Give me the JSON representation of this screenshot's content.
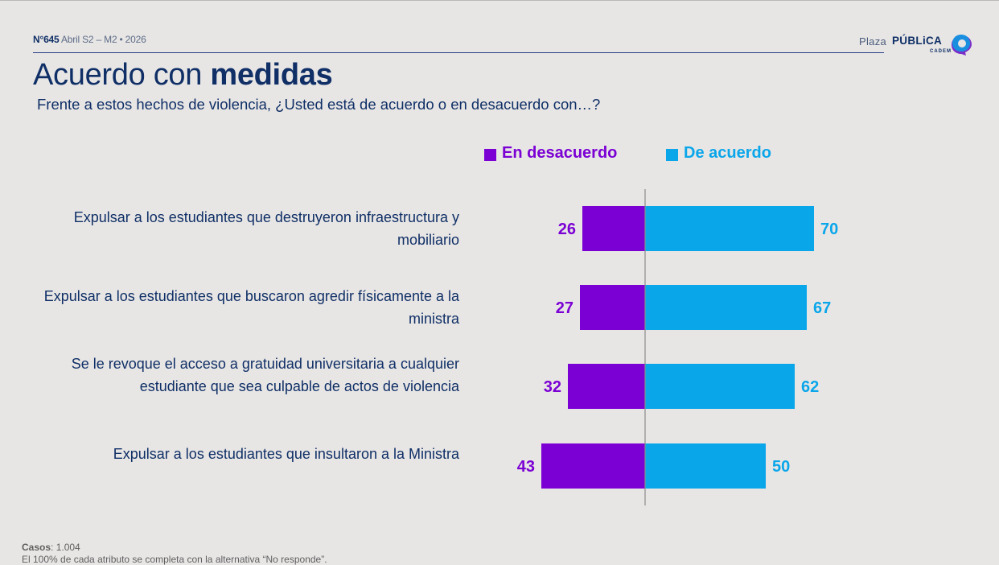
{
  "header": {
    "issue_number": "N°645",
    "issue_period": "Abril S2 – M2 • 2026",
    "logo": {
      "plaza": "Plaza",
      "publica": "PÚBLiCA",
      "cadem": "CADEM"
    },
    "title_regular": "Acuerdo con ",
    "title_bold": "medidas",
    "subtitle": "Frente a estos hechos de violencia, ¿Usted está de acuerdo o en desacuerdo con…?"
  },
  "colors": {
    "disagree": "#7b00d4",
    "agree": "#0aa6ea",
    "text": "#0f2f66",
    "axis": "#8a8a8a"
  },
  "chart_data": {
    "type": "bar",
    "orientation": "horizontal-diverging",
    "title": "Acuerdo con medidas",
    "subtitle": "Frente a estos hechos de violencia, ¿Usted está de acuerdo o en desacuerdo con…?",
    "categories": [
      "Expulsar a los estudiantes que destruyeron infraestructura y mobiliario",
      "Expulsar a los estudiantes que buscaron agredir físicamente a la ministra",
      "Se le revoque el acceso a gratuidad universitaria a cualquier estudiante que sea culpable de actos de violencia",
      "Expulsar a los estudiantes que insultaron a la Ministra"
    ],
    "series": [
      {
        "name": "En desacuerdo",
        "color": "#7b00d4",
        "direction": "left",
        "values": [
          26,
          27,
          32,
          43
        ]
      },
      {
        "name": "De acuerdo",
        "color": "#0aa6ea",
        "direction": "right",
        "values": [
          70,
          67,
          62,
          50
        ]
      }
    ],
    "legend": [
      "En desacuerdo",
      "De acuerdo"
    ],
    "legend_position": "top",
    "units": "%",
    "grid": false,
    "xlim": [
      -50,
      80
    ]
  },
  "footer": {
    "cases_label": "Casos",
    "cases_value": ": 1.004",
    "note": "El 100% de cada atributo se completa con la alternativa “No responde”."
  }
}
